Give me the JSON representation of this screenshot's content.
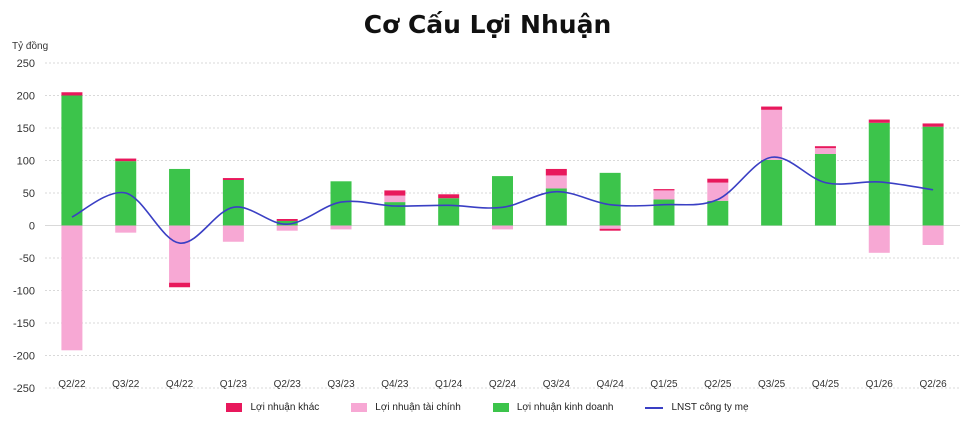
{
  "chart_data": {
    "type": "bar",
    "title": "Cơ Cấu Lợi Nhuận",
    "ylabel": "Tỷ đồng",
    "xlabel": "",
    "ylim": [
      -250,
      250
    ],
    "yticks": [
      250,
      200,
      150,
      100,
      50,
      0,
      -50,
      -100,
      -150,
      -200,
      -250
    ],
    "grid": true,
    "legend_position": "bottom",
    "categories": [
      "Q2/22",
      "Q3/22",
      "Q4/22",
      "Q1/23",
      "Q2/23",
      "Q3/23",
      "Q4/23",
      "Q1/24",
      "Q2/24",
      "Q3/24",
      "Q4/24",
      "Q1/25",
      "Q2/25",
      "Q3/25",
      "Q4/25",
      "Q1/26",
      "Q2/26"
    ],
    "series": [
      {
        "name": "Lợi nhuận khác",
        "type": "stacked-bar",
        "color": "#e8185c",
        "values": [
          5,
          4,
          -7,
          3,
          3,
          0,
          8,
          6,
          0,
          10,
          -3,
          2,
          6,
          5,
          3,
          5,
          5
        ]
      },
      {
        "name": "Lợi nhuận tài chính",
        "type": "stacked-bar",
        "color": "#f7a8d4",
        "values": [
          -192,
          -11,
          -88,
          -25,
          -8,
          -6,
          10,
          0,
          -6,
          20,
          -5,
          14,
          28,
          77,
          9,
          -42,
          -30
        ]
      },
      {
        "name": "Lợi nhuận kinh doanh",
        "type": "stacked-bar",
        "color": "#3cc44b",
        "values": [
          200,
          99,
          87,
          70,
          7,
          68,
          36,
          42,
          76,
          57,
          81,
          40,
          38,
          101,
          110,
          158,
          152
        ]
      },
      {
        "name": "LNST công ty mẹ",
        "type": "line",
        "color": "#3a3fc4",
        "values": [
          13,
          50,
          -27,
          28,
          2,
          36,
          30,
          31,
          28,
          52,
          32,
          32,
          40,
          105,
          66,
          67,
          55
        ]
      }
    ]
  }
}
